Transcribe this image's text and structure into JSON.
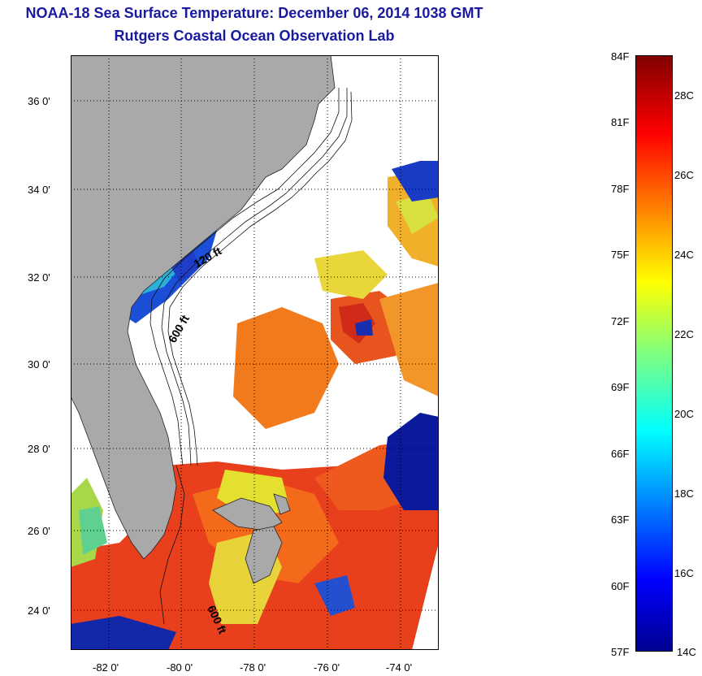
{
  "title": {
    "line1": "NOAA-18 Sea Surface Temperature:  December 06, 2014 1038 GMT",
    "line2": "Rutgers Coastal Ocean Observation Lab"
  },
  "lat_ticks": [
    "36 0'",
    "34 0'",
    "32 0'",
    "30 0'",
    "28 0'",
    "26 0'",
    "24 0'"
  ],
  "lon_ticks": [
    "-82 0'",
    "-80 0'",
    "-78 0'",
    "-76 0'",
    "-74 0'"
  ],
  "contour_labels": [
    "120 ft",
    "600 ft",
    "600 ft"
  ],
  "colorbar": {
    "fahrenheit": [
      "84F",
      "81F",
      "78F",
      "75F",
      "72F",
      "69F",
      "66F",
      "63F",
      "60F",
      "57F"
    ],
    "celsius": [
      "28C",
      "26C",
      "24C",
      "22C",
      "20C",
      "18C",
      "16C",
      "14C"
    ]
  },
  "colors": {
    "title": "#1a1aa0",
    "land": "#a9a9a9",
    "no_data": "#ffffff"
  }
}
